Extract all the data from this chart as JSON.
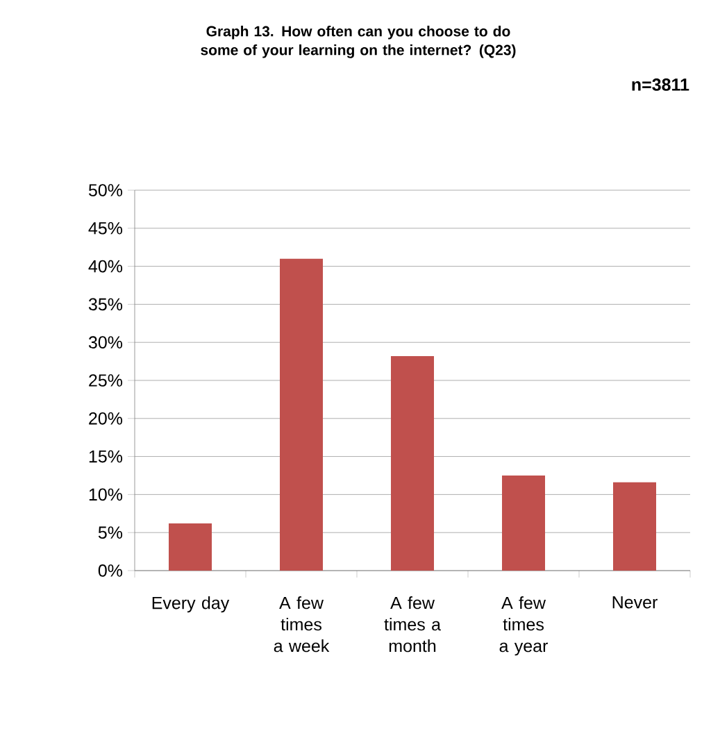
{
  "chart_data": {
    "type": "bar",
    "title": "Graph 13. How often can you choose to do some of your learning on the internet? (Q23)",
    "annotations": [
      "n=3811"
    ],
    "categories": [
      "Every day",
      "A few times a week",
      "A few times a month",
      "A few times a year",
      "Never"
    ],
    "values": [
      6.2,
      41.0,
      28.2,
      12.5,
      11.6
    ],
    "color": "#c0504d",
    "ylim": [
      0,
      50
    ],
    "yticks": [
      {
        "value": 0,
        "label": "0%"
      },
      {
        "value": 5,
        "label": "5%"
      },
      {
        "value": 10,
        "label": "10%"
      },
      {
        "value": 15,
        "label": "15%"
      },
      {
        "value": 20,
        "label": "20%"
      },
      {
        "value": 25,
        "label": "25%"
      },
      {
        "value": 30,
        "label": "30%"
      },
      {
        "value": 35,
        "label": "35%"
      },
      {
        "value": 40,
        "label": "40%"
      },
      {
        "value": 45,
        "label": "45%"
      },
      {
        "value": 50,
        "label": "50%"
      }
    ],
    "grid": "y"
  }
}
